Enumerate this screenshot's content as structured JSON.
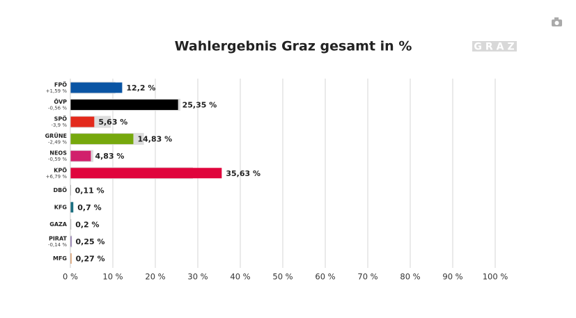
{
  "chart_data": {
    "type": "bar",
    "orientation": "horizontal",
    "title": "Wahlergebnis Graz gesamt in %",
    "logo": "GRAZ",
    "categories": [
      "FPÖ",
      "ÖVP",
      "SPÖ",
      "GRÜNE",
      "NEOS",
      "KPÖ",
      "DBÖ",
      "KFG",
      "GAZA",
      "PIRAT",
      "MFG"
    ],
    "values": [
      12.2,
      25.35,
      5.63,
      14.83,
      4.83,
      35.63,
      0.11,
      0.7,
      0.2,
      0.25,
      0.27
    ],
    "value_labels": [
      "12,2 %",
      "25,35 %",
      "5,63 %",
      "14,83 %",
      "4,83 %",
      "35,63 %",
      "0,11 %",
      "0,7 %",
      "0,2 %",
      "0,25 %",
      "0,27 %"
    ],
    "colors": [
      "#0a55a4",
      "#000000",
      "#e3291b",
      "#76a80d",
      "#d1206c",
      "#e0053d",
      "#9a9a9a",
      "#1a6e80",
      "#aaaaaa",
      "#6f4ca0",
      "#d88a4a"
    ],
    "changes": [
      1.59,
      -0.56,
      -3.9,
      -2.49,
      -0.59,
      6.79,
      null,
      null,
      null,
      -0.14,
      null
    ],
    "change_labels": [
      "+1,59 %",
      "-0,56 %",
      "-3,9 %",
      "-2,49 %",
      "-0,59 %",
      "+6,79 %",
      null,
      null,
      null,
      "-0,14 %",
      null
    ],
    "previous_values": [
      10.61,
      25.91,
      9.53,
      17.32,
      5.42,
      28.84,
      null,
      null,
      null,
      0.39,
      null
    ],
    "previous_color": "#dddddd",
    "xlim": [
      0,
      100
    ],
    "xticks": [
      {
        "value": 0,
        "label": "0 %"
      },
      {
        "value": 10,
        "label": "10 %"
      },
      {
        "value": 20,
        "label": "20 %"
      },
      {
        "value": 30,
        "label": "30 %"
      },
      {
        "value": 40,
        "label": "40 %"
      },
      {
        "value": 50,
        "label": "50 %"
      },
      {
        "value": 60,
        "label": "60 %"
      },
      {
        "value": 70,
        "label": "70 %"
      },
      {
        "value": 80,
        "label": "80 %"
      },
      {
        "value": 90,
        "label": "90 %"
      },
      {
        "value": 100,
        "label": "100 %"
      }
    ],
    "grid": true
  }
}
